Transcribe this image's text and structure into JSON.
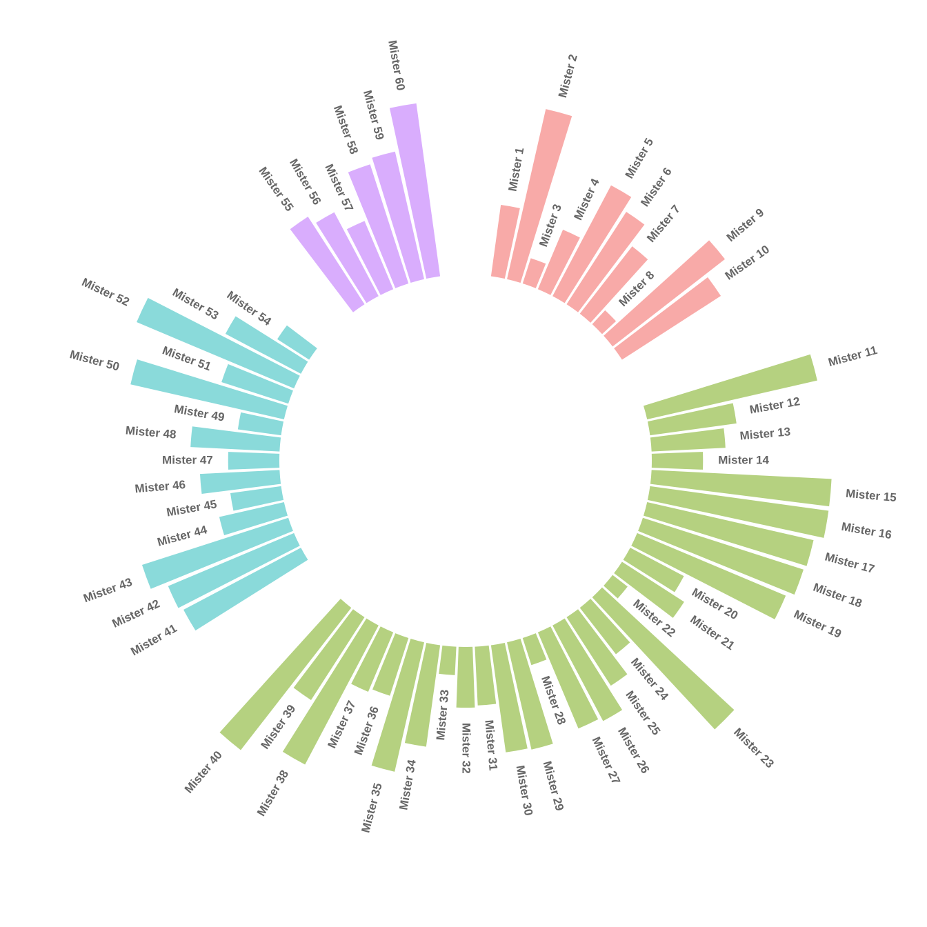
{
  "chart_data": {
    "type": "bar",
    "layout": "circular",
    "grid": false,
    "legend": "none",
    "groups": [
      {
        "id": "A",
        "color": "#F8AAA8"
      },
      {
        "id": "B",
        "color": "#B5D180"
      },
      {
        "id": "C",
        "color": "#8ADADA"
      },
      {
        "id": "D",
        "color": "#D9ADFD"
      }
    ],
    "bars": [
      {
        "name": "Mister 1",
        "value": 38,
        "group": "A"
      },
      {
        "name": "Mister 2",
        "value": 92,
        "group": "A"
      },
      {
        "name": "Mister 3",
        "value": 14,
        "group": "A"
      },
      {
        "name": "Mister 4",
        "value": 34,
        "group": "A"
      },
      {
        "name": "Mister 5",
        "value": 66,
        "group": "A"
      },
      {
        "name": "Mister 6",
        "value": 58,
        "group": "A"
      },
      {
        "name": "Mister 7",
        "value": 45,
        "group": "A"
      },
      {
        "name": "Mister 8",
        "value": 10,
        "group": "A"
      },
      {
        "name": "Mister 9",
        "value": 75,
        "group": "A"
      },
      {
        "name": "Mister 10",
        "value": 62,
        "group": "A"
      },
      {
        "name": "Mister 11",
        "value": 92,
        "group": "B"
      },
      {
        "name": "Mister 12",
        "value": 46,
        "group": "B"
      },
      {
        "name": "Mister 13",
        "value": 39,
        "group": "B"
      },
      {
        "name": "Mister 14",
        "value": 27,
        "group": "B"
      },
      {
        "name": "Mister 15",
        "value": 95,
        "group": "B"
      },
      {
        "name": "Mister 16",
        "value": 95,
        "group": "B"
      },
      {
        "name": "Mister 17",
        "value": 90,
        "group": "B"
      },
      {
        "name": "Mister 18",
        "value": 89,
        "group": "B"
      },
      {
        "name": "Mister 19",
        "value": 85,
        "group": "B"
      },
      {
        "name": "Mister 20",
        "value": 32,
        "group": "B"
      },
      {
        "name": "Mister 21",
        "value": 39,
        "group": "B"
      },
      {
        "name": "Mister 22",
        "value": 10,
        "group": "B"
      },
      {
        "name": "Mister 23",
        "value": 95,
        "group": "B"
      },
      {
        "name": "Mister 24",
        "value": 31,
        "group": "B"
      },
      {
        "name": "Mister 25",
        "value": 43,
        "group": "B"
      },
      {
        "name": "Mister 26",
        "value": 57,
        "group": "B"
      },
      {
        "name": "Mister 27",
        "value": 55,
        "group": "B"
      },
      {
        "name": "Mister 28",
        "value": 15,
        "group": "B"
      },
      {
        "name": "Mister 29",
        "value": 58,
        "group": "B"
      },
      {
        "name": "Mister 30",
        "value": 57,
        "group": "B"
      },
      {
        "name": "Mister 31",
        "value": 31,
        "group": "B"
      },
      {
        "name": "Mister 32",
        "value": 32,
        "group": "B"
      },
      {
        "name": "Mister 33",
        "value": 15,
        "group": "B"
      },
      {
        "name": "Mister 34",
        "value": 54,
        "group": "B"
      },
      {
        "name": "Mister 35",
        "value": 70,
        "group": "B"
      },
      {
        "name": "Mister 36",
        "value": 32,
        "group": "B"
      },
      {
        "name": "Mister 37",
        "value": 34,
        "group": "B"
      },
      {
        "name": "Mister 38",
        "value": 83,
        "group": "B"
      },
      {
        "name": "Mister 39",
        "value": 52,
        "group": "B"
      },
      {
        "name": "Mister 40",
        "value": 95,
        "group": "B"
      },
      {
        "name": "Mister 41",
        "value": 70,
        "group": "C"
      },
      {
        "name": "Mister 42",
        "value": 72,
        "group": "C"
      },
      {
        "name": "Mister 43",
        "value": 81,
        "group": "C"
      },
      {
        "name": "Mister 44",
        "value": 35,
        "group": "C"
      },
      {
        "name": "Mister 45",
        "value": 27,
        "group": "C"
      },
      {
        "name": "Mister 46",
        "value": 42,
        "group": "C"
      },
      {
        "name": "Mister 47",
        "value": 27,
        "group": "C"
      },
      {
        "name": "Mister 48",
        "value": 47,
        "group": "C"
      },
      {
        "name": "Mister 49",
        "value": 23,
        "group": "C"
      },
      {
        "name": "Mister 50",
        "value": 83,
        "group": "C"
      },
      {
        "name": "Mister 51",
        "value": 37,
        "group": "C"
      },
      {
        "name": "Mister 52",
        "value": 90,
        "group": "C"
      },
      {
        "name": "Mister 53",
        "value": 45,
        "group": "C"
      },
      {
        "name": "Mister 54",
        "value": 20,
        "group": "C"
      },
      {
        "name": "Mister 55",
        "value": 55,
        "group": "D"
      },
      {
        "name": "Mister 56",
        "value": 50,
        "group": "D"
      },
      {
        "name": "Mister 57",
        "value": 39,
        "group": "D"
      },
      {
        "name": "Mister 58",
        "value": 66,
        "group": "D"
      },
      {
        "name": "Mister 59",
        "value": 69,
        "group": "D"
      },
      {
        "name": "Mister 60",
        "value": 92,
        "group": "D"
      }
    ]
  }
}
